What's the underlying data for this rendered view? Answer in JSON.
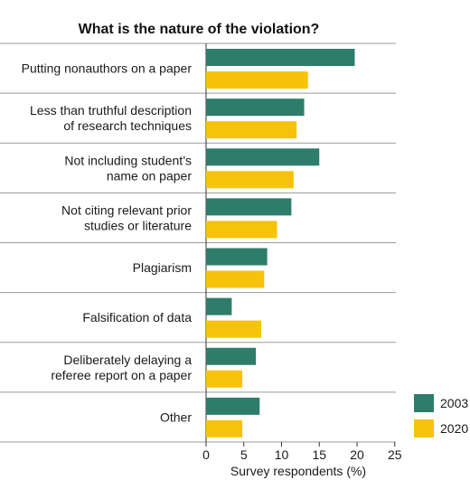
{
  "chart_data": {
    "type": "bar",
    "orientation": "horizontal",
    "title": "What is the nature of the violation?",
    "xlabel": "Survey respondents (%)",
    "ylabel": "",
    "xlim": [
      0,
      25
    ],
    "xticks": [
      0,
      5,
      10,
      15,
      20,
      25
    ],
    "grid": false,
    "legend": "bottom-right",
    "categories": [
      [
        "Putting nonauthors on a paper"
      ],
      [
        "Less than truthful description",
        "of research techniques"
      ],
      [
        "Not including student’s",
        "name on paper"
      ],
      [
        "Not citing relevant prior",
        "studies or literature"
      ],
      [
        "Plagiarism"
      ],
      [
        "Falsification of data"
      ],
      [
        "Deliberately delaying a",
        "referee report on a paper"
      ],
      [
        "Other"
      ]
    ],
    "series": [
      {
        "name": "2003",
        "color": "#2e7d6a",
        "values": [
          19.7,
          13,
          15,
          11.3,
          8.1,
          3.4,
          6.6,
          7.1
        ]
      },
      {
        "name": "2020",
        "color": "#f7c20a",
        "values": [
          13.5,
          12,
          11.6,
          9.4,
          7.7,
          7.3,
          4.8,
          4.8
        ]
      }
    ]
  }
}
